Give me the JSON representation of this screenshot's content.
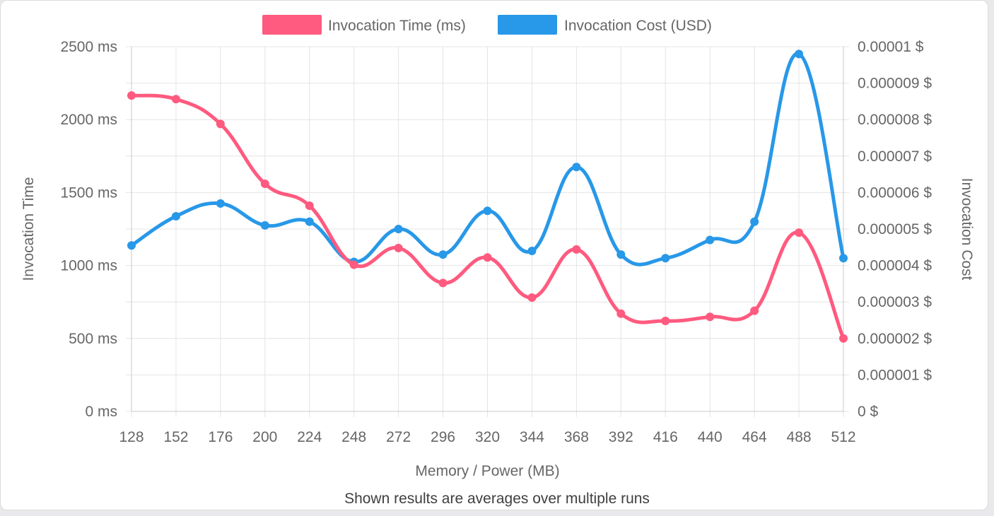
{
  "chart_data": {
    "type": "line",
    "x": [
      128,
      152,
      176,
      200,
      224,
      248,
      272,
      296,
      320,
      344,
      368,
      392,
      416,
      440,
      464,
      488,
      512
    ],
    "xlabel": "Memory / Power (MB)",
    "footnote": "Shown results are averages over multiple runs",
    "y_left": {
      "label": "Invocation Time",
      "range": [
        0,
        2500
      ],
      "ticks": [
        0,
        500,
        1000,
        1500,
        2000,
        2500
      ],
      "tick_labels": [
        "0 ms",
        "500 ms",
        "1000 ms",
        "1500 ms",
        "2000 ms",
        "2500 ms"
      ]
    },
    "y_right": {
      "label": "Invocation Cost",
      "range": [
        0,
        1e-05
      ],
      "ticks": [
        0,
        1e-06,
        2e-06,
        3e-06,
        4e-06,
        5e-06,
        6e-06,
        7e-06,
        8e-06,
        9e-06,
        1e-05
      ],
      "tick_labels": [
        "0 $",
        "0.000001 $",
        "0.000002 $",
        "0.000003 $",
        "0.000004 $",
        "0.000005 $",
        "0.000006 $",
        "0.000007 $",
        "0.000008 $",
        "0.000009 $",
        "0.00001 $"
      ]
    },
    "series": [
      {
        "name": "Invocation Time (ms)",
        "axis": "left",
        "color": "#ff5a7f",
        "values": [
          2165,
          2140,
          1970,
          1560,
          1410,
          1005,
          1120,
          880,
          1055,
          780,
          1110,
          670,
          620,
          648,
          690,
          1225,
          500
        ]
      },
      {
        "name": "Invocation Cost (USD)",
        "axis": "right",
        "color": "#2898e8",
        "values": [
          4.55e-06,
          5.35e-06,
          5.7e-06,
          5.1e-06,
          5.2e-06,
          4.1e-06,
          5e-06,
          4.3e-06,
          5.5e-06,
          4.4e-06,
          6.7e-06,
          4.3e-06,
          4.2e-06,
          4.7e-06,
          5.2e-06,
          9.8e-06,
          4.2e-06
        ]
      }
    ],
    "grid": true,
    "legend": "top-center"
  }
}
